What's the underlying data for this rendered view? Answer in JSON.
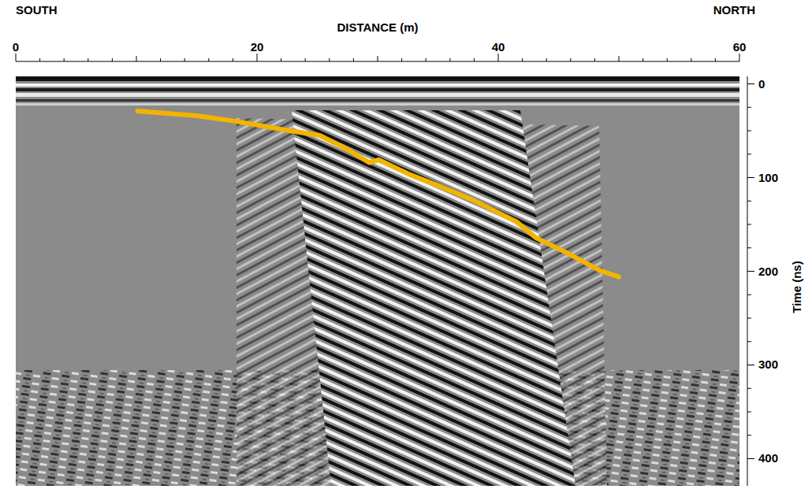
{
  "chart_data": {
    "type": "line",
    "annotations": [
      "SOUTH",
      "NORTH"
    ],
    "x_label": "DISTANCE (m)",
    "y_label": "Time (ns)",
    "x": [
      10.1,
      15.0,
      18.3,
      22.2,
      25.2,
      27.5,
      29.3,
      30.1,
      32.7,
      35.3,
      37.9,
      41.5,
      43.1,
      45.8,
      48.4,
      50.0
    ],
    "values": [
      29,
      34,
      40,
      49,
      55,
      70,
      84,
      81,
      97,
      110,
      124,
      147,
      164,
      181,
      199,
      206
    ],
    "color": "#f2b400",
    "xlim": [
      0,
      60
    ],
    "xticks": [
      0,
      20,
      40,
      60
    ],
    "ylim": [
      -8,
      429
    ],
    "yticks": [
      0,
      100,
      200,
      300,
      400
    ],
    "grid": false
  }
}
